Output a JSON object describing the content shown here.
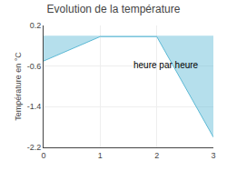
{
  "chart_data": {
    "type": "area",
    "title": "Evolution de la température",
    "y_label": "Température en °C",
    "annotations": [
      {
        "text": "heure par heure",
        "x": 1.55,
        "y": -0.45
      }
    ],
    "x": [
      0,
      1,
      2,
      3
    ],
    "values": [
      -0.5,
      -0.02,
      -0.02,
      -2.0
    ],
    "color": "#5bb8d4",
    "xlim": [
      0,
      3
    ],
    "xticks": [
      0,
      1,
      2,
      3
    ],
    "ylim": [
      -2.2,
      0.2
    ],
    "yticks": [
      0.2,
      -0.6,
      -1.4,
      -2.2
    ],
    "grid": true
  }
}
